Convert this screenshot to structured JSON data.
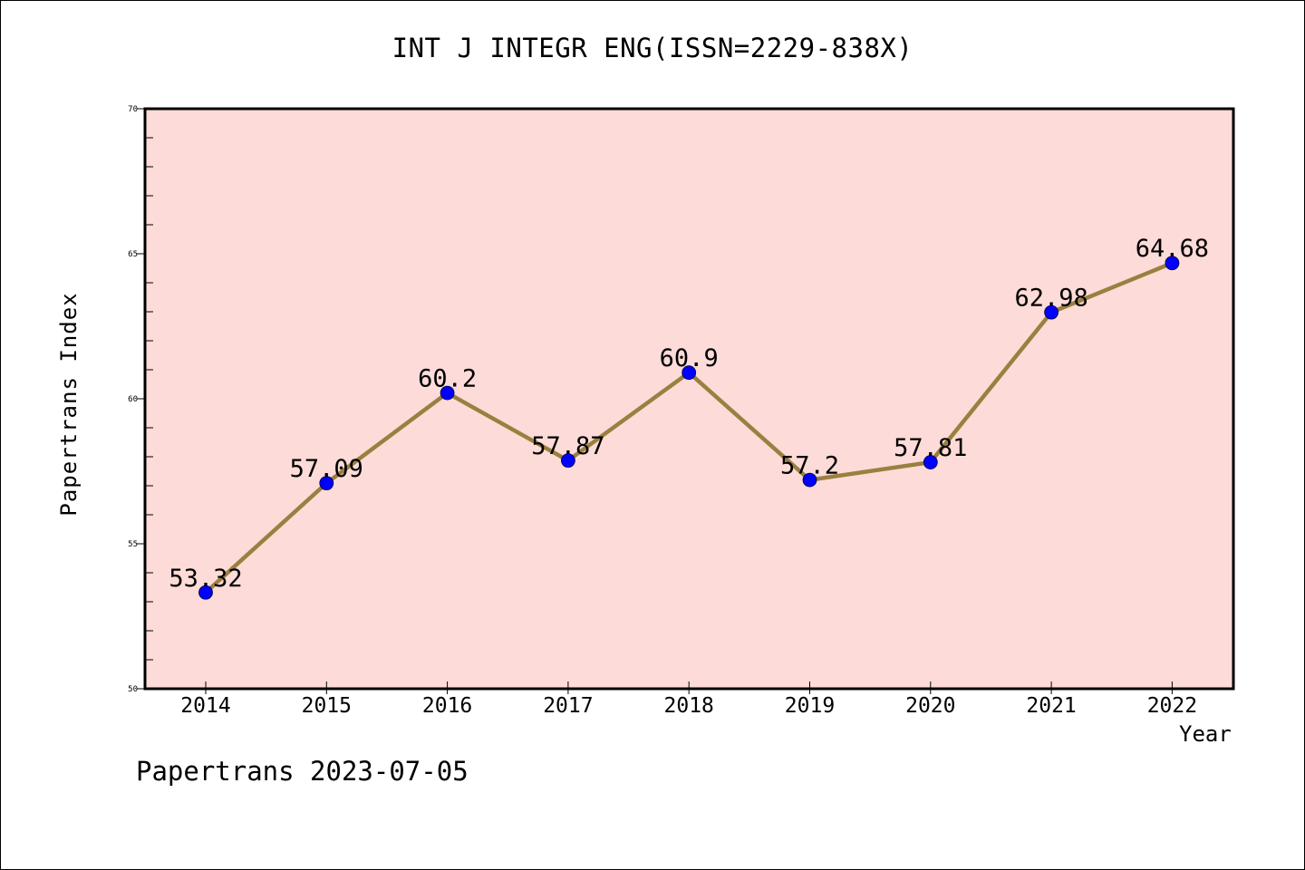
{
  "chart_data": {
    "type": "line",
    "title": "INT J INTEGR ENG(ISSN=2229-838X)",
    "xlabel": "Year",
    "ylabel": "Papertrans Index",
    "categories": [
      "2014",
      "2015",
      "2016",
      "2017",
      "2018",
      "2019",
      "2020",
      "2021",
      "2022"
    ],
    "series": [
      {
        "values": [
          53.32,
          57.09,
          60.2,
          57.87,
          60.9,
          57.2,
          57.81,
          62.98,
          64.68
        ],
        "data_labels": [
          "53.32",
          "57.09",
          "60.2",
          "57.87",
          "60.9",
          "57.2",
          "57.81",
          "62.98",
          "64.68"
        ]
      }
    ],
    "ylim": [
      50,
      70
    ],
    "yticks": [
      "50",
      "55",
      "60",
      "65",
      "70"
    ],
    "grid": false,
    "legend": "none",
    "colors": {
      "plot_background": "#fddbd8",
      "line": "#9a8040",
      "marker": "#0000ff",
      "axis": "#000000"
    }
  },
  "footer": {
    "text": "Papertrans 2023-07-05"
  }
}
